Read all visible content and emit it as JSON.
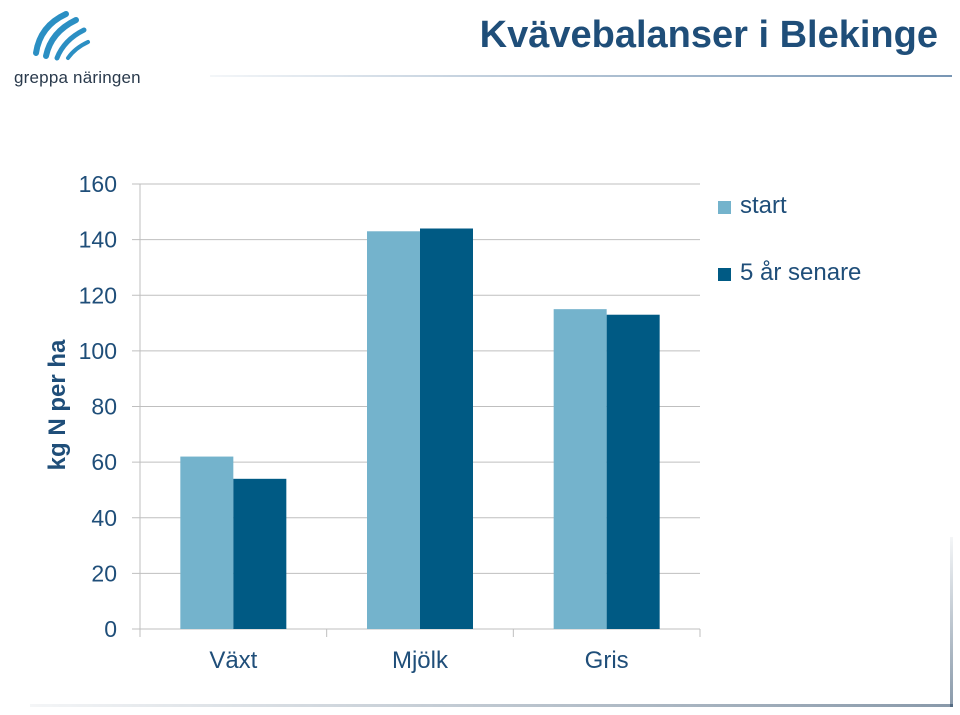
{
  "header": {
    "title": "Kvävebalanser i Blekinge",
    "logo_text": "greppa näringen",
    "logo_icon": "greppa-logo-icon"
  },
  "colors": {
    "series_start": "#74b3cc",
    "series_later": "#005a84",
    "text": "#1f4e79",
    "grid": "#bfbfbf"
  },
  "chart_data": {
    "type": "bar",
    "title": "Kvävebalanser i Blekinge",
    "xlabel": "",
    "ylabel": "kg N per ha",
    "ylim": [
      0,
      160
    ],
    "yticks": [
      "0",
      "20",
      "40",
      "60",
      "80",
      "100",
      "120",
      "140",
      "160"
    ],
    "categories": [
      "Växt",
      "Mjölk",
      "Gris"
    ],
    "series": [
      {
        "name": "start",
        "values": [
          62,
          143,
          115
        ]
      },
      {
        "name": "5 år senare",
        "values": [
          54,
          144,
          113
        ]
      }
    ],
    "grid": true,
    "legend_position": "top-right"
  }
}
